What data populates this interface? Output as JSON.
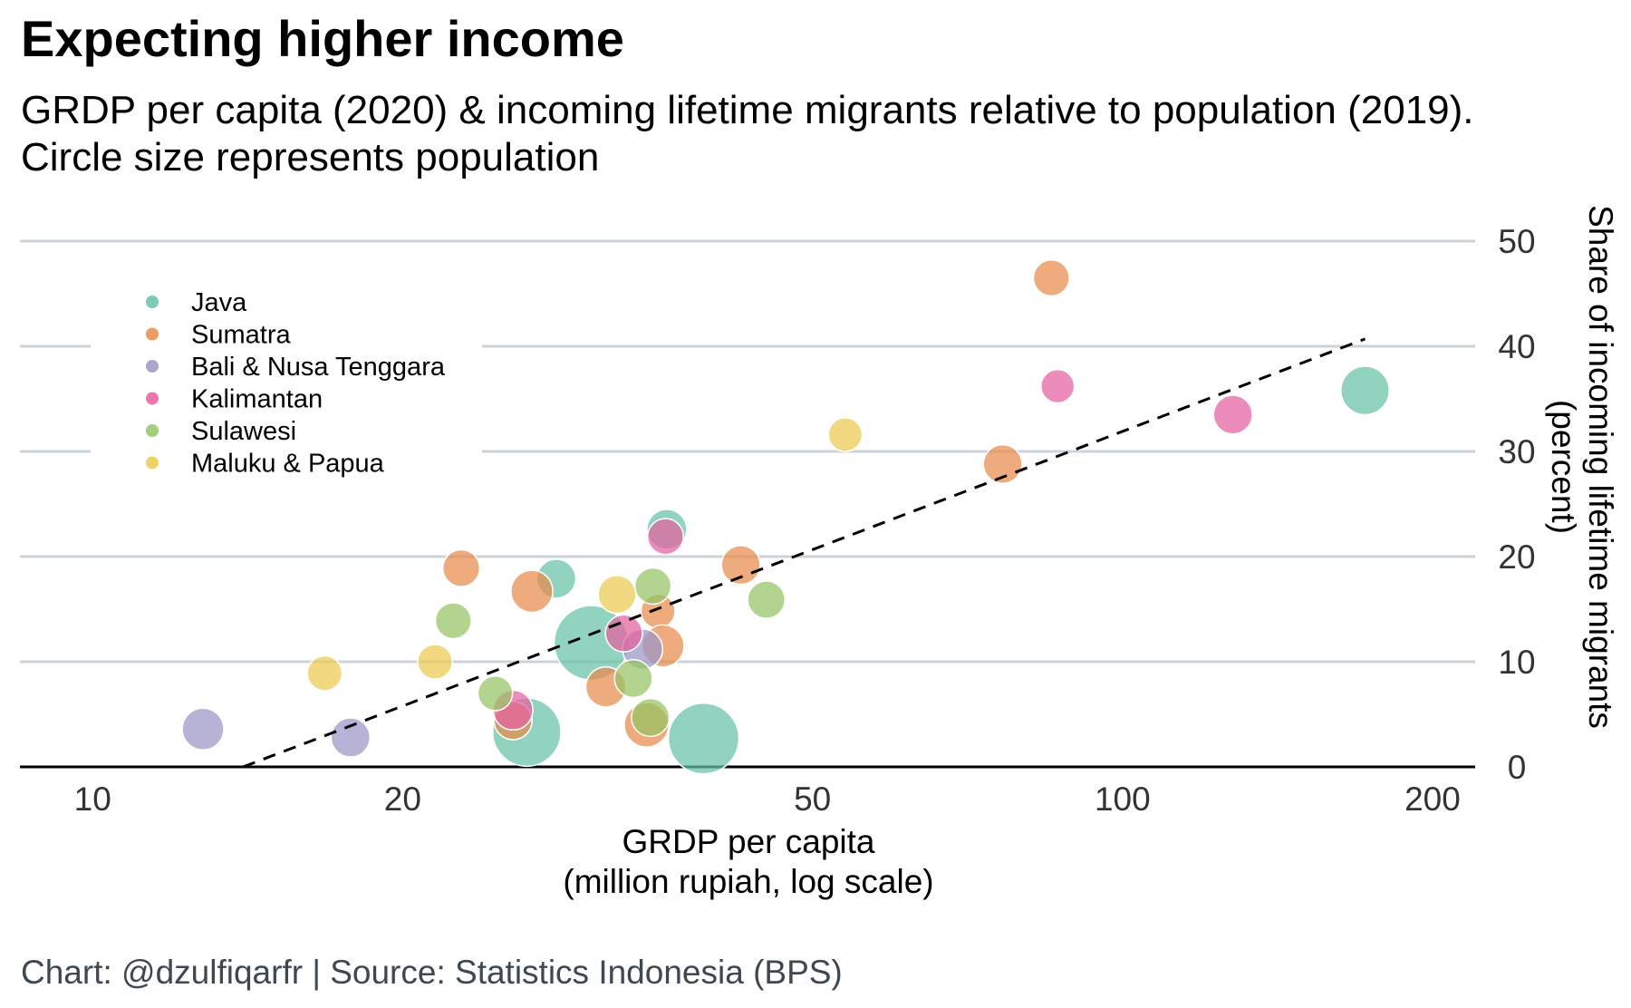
{
  "title": "Expecting higher income",
  "subtitle_line1": "GRDP per capita (2020) & incoming lifetime migrants relative to population (2019).",
  "subtitle_line2": "Circle size represents population",
  "caption": "Chart: @dzulfiqarfr | Source: Statistics Indonesia (BPS)",
  "colors": {
    "Java": "#66c2a5",
    "Sumatra": "#e78a4b",
    "Bali & Nusa Tenggara": "#9a96c8",
    "Kalimantan": "#e5609f",
    "Sulawesi": "#96c463",
    "Maluku & Papua": "#ebcb50",
    "grid": "#cdd4d9",
    "trend": "#000000"
  },
  "chart_data": {
    "type": "scatter",
    "xscale": "log",
    "xlim": [
      8.5,
      220
    ],
    "ylim": [
      0,
      50
    ],
    "xticks": [
      10,
      20,
      50,
      100,
      200
    ],
    "yticks": [
      0,
      10,
      20,
      30,
      40,
      50
    ],
    "xlabel_line1": "GRDP per capita",
    "xlabel_line2": "(million rupiah, log scale)",
    "ylabel_line1": "Share of incoming lifetime migrants",
    "ylabel_line2": "(percent)",
    "grid": "horizontal",
    "legend_position": "top-left",
    "trendline": {
      "type": "dashed",
      "points": [
        [
          14,
          0
        ],
        [
          172,
          40.7
        ]
      ]
    },
    "series": [
      {
        "name": "Java",
        "points": [
          {
            "x": 172,
            "y": 35.8,
            "pop": 10.6
          },
          {
            "x": 36.1,
            "y": 22.6,
            "pop": 4.2
          },
          {
            "x": 28.2,
            "y": 17.9,
            "pop": 3.7
          },
          {
            "x": 30.5,
            "y": 11.8,
            "pop": 48.3
          },
          {
            "x": 26.4,
            "y": 3.3,
            "pop": 36.7
          },
          {
            "x": 39.2,
            "y": 2.7,
            "pop": 40.7
          }
        ]
      },
      {
        "name": "Sumatra",
        "points": [
          {
            "x": 85.3,
            "y": 46.5,
            "pop": 2.2
          },
          {
            "x": 76.5,
            "y": 28.8,
            "pop": 3.5
          },
          {
            "x": 42.6,
            "y": 19.2,
            "pop": 3.6
          },
          {
            "x": 22.8,
            "y": 18.9,
            "pop": 2.6
          },
          {
            "x": 26.7,
            "y": 16.7,
            "pop": 5.4
          },
          {
            "x": 35.4,
            "y": 14.8,
            "pop": 1.5
          },
          {
            "x": 35.8,
            "y": 11.5,
            "pop": 5.5
          },
          {
            "x": 31.5,
            "y": 7.6,
            "pop": 4.3
          },
          {
            "x": 25.6,
            "y": 4.4,
            "pop": 3.2
          },
          {
            "x": 34.5,
            "y": 4.0,
            "pop": 7.3
          }
        ]
      },
      {
        "name": "Bali & Nusa Tenggara",
        "points": [
          {
            "x": 12.8,
            "y": 3.6,
            "pop": 5.3
          },
          {
            "x": 17.8,
            "y": 2.8,
            "pop": 3.7
          },
          {
            "x": 34.2,
            "y": 11.2,
            "pop": 4.3
          }
        ]
      },
      {
        "name": "Kalimantan",
        "points": [
          {
            "x": 86.5,
            "y": 36.2,
            "pop": 1.3
          },
          {
            "x": 128,
            "y": 33.5,
            "pop": 3.6
          },
          {
            "x": 36.0,
            "y": 21.9,
            "pop": 2.2
          },
          {
            "x": 32.8,
            "y": 12.7,
            "pop": 2.7
          },
          {
            "x": 25.6,
            "y": 5.4,
            "pop": 4.1
          }
        ]
      },
      {
        "name": "Sulawesi",
        "points": [
          {
            "x": 45.1,
            "y": 15.9,
            "pop": 2.9
          },
          {
            "x": 22.4,
            "y": 13.9,
            "pop": 2.2
          },
          {
            "x": 35.0,
            "y": 17.2,
            "pop": 2.4
          },
          {
            "x": 24.6,
            "y": 7.0,
            "pop": 1.7
          },
          {
            "x": 33.5,
            "y": 8.4,
            "pop": 3.0
          },
          {
            "x": 34.8,
            "y": 4.7,
            "pop": 3.1
          }
        ]
      },
      {
        "name": "Maluku & Papua",
        "points": [
          {
            "x": 53.8,
            "y": 31.6,
            "pop": 1.4
          },
          {
            "x": 16.8,
            "y": 8.9,
            "pop": 1.8
          },
          {
            "x": 21.5,
            "y": 10.0,
            "pop": 1.7
          },
          {
            "x": 32.3,
            "y": 16.4,
            "pop": 3.1
          }
        ]
      }
    ]
  }
}
